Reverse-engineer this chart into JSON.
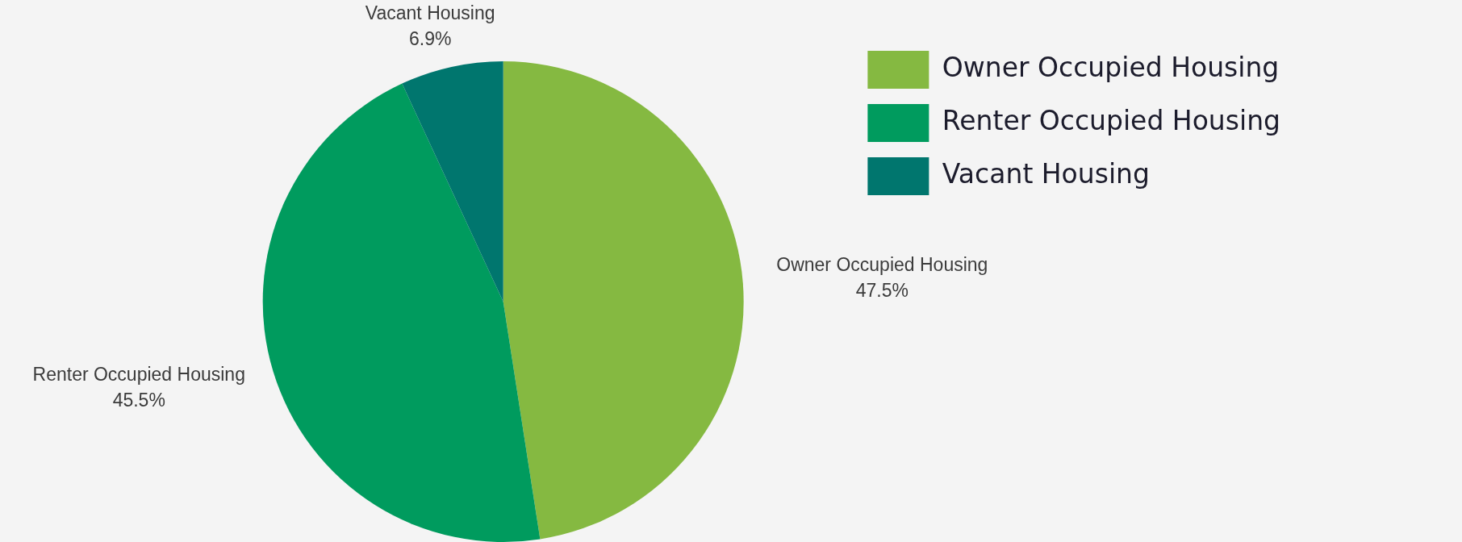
{
  "chart_data": {
    "type": "pie",
    "categories": [
      "Owner Occupied Housing",
      "Renter Occupied Housing",
      "Vacant Housing"
    ],
    "values": [
      47.5,
      45.5,
      6.9
    ],
    "colors": [
      "#85b941",
      "#009b5e",
      "#00766e"
    ],
    "value_labels": [
      "47.5%",
      "45.5%",
      "6.9%"
    ],
    "legend": "top right"
  }
}
